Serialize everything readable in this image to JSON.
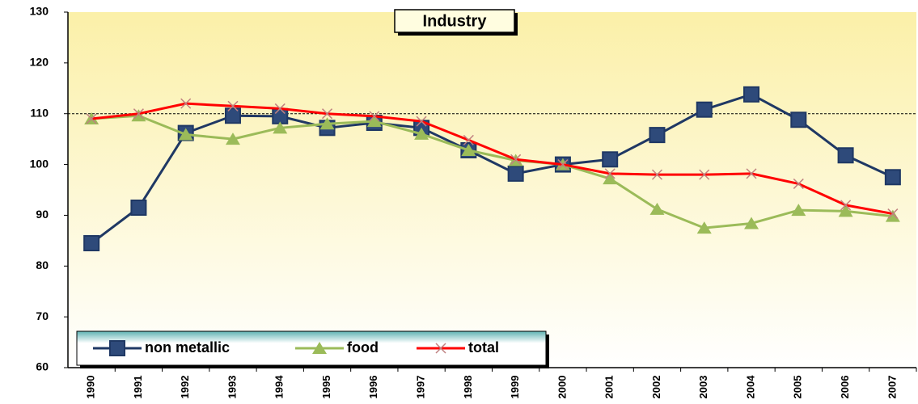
{
  "chart_data": {
    "type": "line",
    "title": "Industry",
    "categories": [
      "1990",
      "1991",
      "1992",
      "1993",
      "1994",
      "1995",
      "1996",
      "1997",
      "1998",
      "1999",
      "2000",
      "2001",
      "2002",
      "2003",
      "2004",
      "2005",
      "2006",
      "2007"
    ],
    "series": [
      {
        "name": "non metallic",
        "color": "#1f3864",
        "marker": "square",
        "marker_color": "#2e4a7a",
        "values": [
          84.5,
          91.5,
          106.2,
          109.6,
          109.5,
          107.2,
          108.2,
          107.2,
          102.8,
          98.2,
          100,
          101,
          105.8,
          110.8,
          113.8,
          108.8,
          101.8,
          97.5
        ]
      },
      {
        "name": "food",
        "color": "#9bbb59",
        "marker": "triangle",
        "marker_color": "#9bbb59",
        "values": [
          109,
          109.6,
          105.9,
          105,
          107.2,
          108,
          108.5,
          106,
          102.8,
          100.8,
          100,
          97.2,
          91.2,
          87.5,
          88.4,
          91,
          90.8,
          89.8
        ]
      },
      {
        "name": "total",
        "color": "#ff0000",
        "marker": "x",
        "marker_color": "#c08080",
        "values": [
          109,
          110,
          112,
          111.5,
          111,
          110,
          109.5,
          108.5,
          104.8,
          101,
          100,
          98.2,
          98,
          98,
          98.2,
          96.2,
          92,
          90.3
        ]
      }
    ],
    "ylim": [
      60,
      130
    ],
    "yticks": [
      60,
      70,
      80,
      90,
      100,
      110,
      120,
      130
    ],
    "reference_line": 110,
    "legend": "lower left"
  }
}
